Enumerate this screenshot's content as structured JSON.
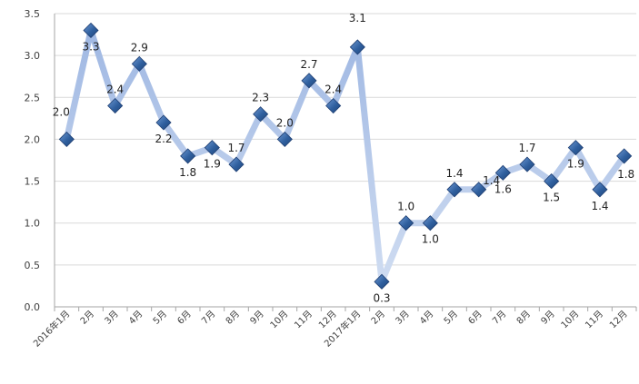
{
  "chart_data": {
    "type": "line",
    "categories": [
      "2016年1月",
      "2月",
      "3月",
      "4月",
      "5月",
      "6月",
      "7月",
      "8月",
      "9月",
      "10月",
      "11月",
      "12月",
      "2017年1月",
      "2月",
      "3月",
      "4月",
      "5月",
      "6月",
      "7月",
      "8月",
      "9月",
      "10月",
      "11月",
      "12月"
    ],
    "values": [
      2.0,
      3.3,
      2.4,
      2.9,
      2.2,
      1.8,
      1.9,
      1.7,
      2.3,
      2.0,
      2.7,
      2.4,
      3.1,
      0.3,
      1.0,
      1.0,
      1.4,
      1.4,
      1.6,
      1.7,
      1.5,
      1.9,
      1.4,
      1.8
    ],
    "data_labels": [
      "2.0",
      "3.3",
      "2.4",
      "2.9",
      "2.2",
      "1.8",
      "1.9",
      "1.7",
      "2.3",
      "2.0",
      "2.7",
      "2.4",
      "3.1",
      "0.3",
      "1.0",
      "1.0",
      "1.4",
      "1.4",
      "1.6",
      "1.7",
      "1.5",
      "1.9",
      "1.4",
      "1.8"
    ],
    "ylim": [
      0,
      3.5
    ],
    "yticks": [
      "0.0",
      "0.5",
      "1.0",
      "1.5",
      "2.0",
      "2.5",
      "3.0",
      "3.5"
    ],
    "grid": true,
    "colors": {
      "line_light": "#c9d7ef",
      "line_mid": "#9db6e2",
      "marker": "#2f5f9e",
      "marker_edge": "#1f3f73",
      "grid": "#d9d9d9",
      "axis": "#a6a6a6"
    }
  }
}
